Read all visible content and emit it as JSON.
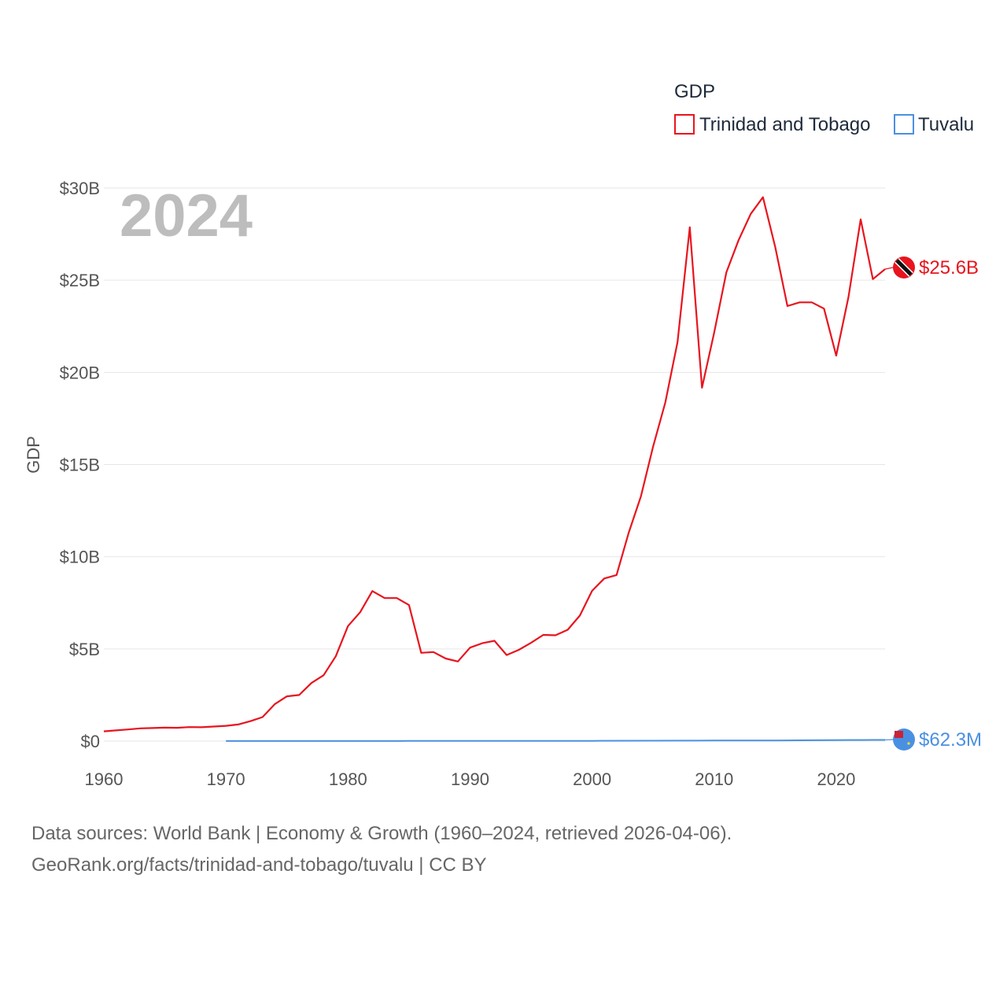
{
  "chart_data": {
    "type": "line",
    "year_label": "2024",
    "ylabel": "GDP",
    "xlim": [
      1960,
      2024
    ],
    "ylim": [
      0,
      30000000000
    ],
    "x_ticks": [
      1960,
      1970,
      1980,
      1990,
      2000,
      2010,
      2020
    ],
    "y_ticks": [
      {
        "value": 0,
        "label": "$0"
      },
      {
        "value": 5000000000,
        "label": "$5B"
      },
      {
        "value": 10000000000,
        "label": "$10B"
      },
      {
        "value": 15000000000,
        "label": "$15B"
      },
      {
        "value": 20000000000,
        "label": "$20B"
      },
      {
        "value": 25000000000,
        "label": "$25B"
      },
      {
        "value": 30000000000,
        "label": "$30B"
      }
    ],
    "legend": {
      "title": "GDP",
      "items": [
        {
          "label": "Trinidad and Tobago",
          "color": "#e8141e"
        },
        {
          "label": "Tuvalu",
          "color": "#4a90e2"
        }
      ]
    },
    "series": [
      {
        "name": "Trinidad and Tobago",
        "color": "#e8141e",
        "end_label": "$25.6B",
        "years": [
          1960,
          1961,
          1962,
          1963,
          1964,
          1965,
          1966,
          1967,
          1968,
          1969,
          1970,
          1971,
          1972,
          1973,
          1974,
          1975,
          1976,
          1977,
          1978,
          1979,
          1980,
          1981,
          1982,
          1983,
          1984,
          1985,
          1986,
          1987,
          1988,
          1989,
          1990,
          1991,
          1992,
          1993,
          1994,
          1995,
          1996,
          1997,
          1998,
          1999,
          2000,
          2001,
          2002,
          2003,
          2004,
          2005,
          2006,
          2007,
          2008,
          2009,
          2010,
          2011,
          2012,
          2013,
          2014,
          2015,
          2016,
          2017,
          2018,
          2019,
          2020,
          2021,
          2022,
          2023,
          2024
        ],
        "values": [
          530000000,
          580000000,
          630000000,
          690000000,
          710000000,
          730000000,
          720000000,
          760000000,
          750000000,
          790000000,
          830000000,
          900000000,
          1080000000,
          1300000000,
          2000000000,
          2430000000,
          2500000000,
          3150000000,
          3570000000,
          4600000000,
          6240000000,
          6990000000,
          8140000000,
          7760000000,
          7760000000,
          7380000000,
          4790000000,
          4830000000,
          4480000000,
          4320000000,
          5070000000,
          5310000000,
          5440000000,
          4670000000,
          4950000000,
          5330000000,
          5760000000,
          5740000000,
          6040000000,
          6810000000,
          8150000000,
          8820000000,
          9010000000,
          11310000000,
          13280000000,
          15980000000,
          18370000000,
          21640000000,
          27870000000,
          19170000000,
          22160000000,
          25430000000,
          27170000000,
          28600000000,
          29500000000,
          26800000000,
          23600000000,
          23800000000,
          23800000000,
          23460000000,
          20910000000,
          24090000000,
          28300000000,
          25060000000,
          25600000000
        ]
      },
      {
        "name": "Tuvalu",
        "color": "#4a90e2",
        "end_label": "$62.3M",
        "years": [
          1970,
          1975,
          1980,
          1985,
          1990,
          1995,
          2000,
          2005,
          2010,
          2015,
          2020,
          2021,
          2022,
          2023,
          2024
        ],
        "values": [
          4000000,
          5000000,
          6000000,
          7000000,
          9000000,
          11000000,
          13000000,
          20000000,
          32000000,
          36000000,
          52000000,
          60000000,
          59000000,
          62000000,
          62300000
        ]
      }
    ],
    "source_lines": [
      "Data sources: World Bank | Economy & Growth (1960–2024, retrieved 2026-04-06).",
      "GeoRank.org/facts/trinidad-and-tobago/tuvalu | CC BY"
    ]
  }
}
